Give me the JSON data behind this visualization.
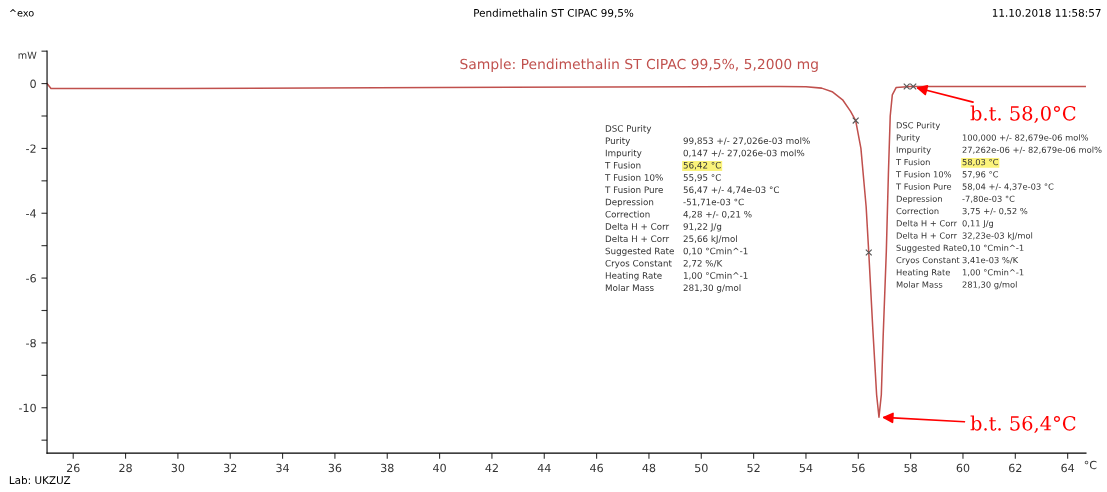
{
  "chart_data": {
    "type": "line",
    "title": "Pendimethalin ST CIPAC 99,5%",
    "subtitle": "Sample: Pendimethalin ST CIPAC 99,5%, 5,2000 mg",
    "xlabel": "°C",
    "ylabel": "mW",
    "xlim": [
      25.0,
      64.7
    ],
    "ylim": [
      -11.4,
      1.0
    ],
    "xticks": [
      26,
      28,
      30,
      32,
      34,
      36,
      38,
      40,
      42,
      44,
      46,
      48,
      50,
      52,
      54,
      56,
      58,
      60,
      62,
      64
    ],
    "yticks": [
      {
        "value": -11,
        "label": null
      },
      -10,
      {
        "value": -9,
        "label": null
      },
      -8,
      {
        "value": -7,
        "label": null
      },
      -6,
      {
        "value": -5,
        "label": null
      },
      -4,
      {
        "value": -3,
        "label": null
      },
      -2,
      {
        "value": -1,
        "label": null
      },
      0,
      {
        "value": 1,
        "label": null
      }
    ],
    "grid": false,
    "legend": false,
    "series": [
      {
        "color": "#c0504d",
        "marker": "none",
        "line_style": "solid",
        "x": [
          25.0,
          25.15,
          30,
          40,
          50,
          53,
          54.0,
          54.6,
          55.0,
          55.4,
          55.7,
          55.9,
          56.1,
          56.3,
          56.4,
          56.55,
          56.7,
          56.79,
          56.88,
          56.95,
          57.07,
          57.15,
          57.22,
          57.3,
          57.45,
          58.0,
          64.7
        ],
        "values": [
          0,
          -0.15,
          -0.15,
          -0.12,
          -0.1,
          -0.09,
          -0.1,
          -0.14,
          -0.25,
          -0.5,
          -0.85,
          -1.14,
          -2.0,
          -3.8,
          -5.21,
          -7.5,
          -9.6,
          -10.29,
          -9.6,
          -7.8,
          -5.2,
          -2.8,
          -1.0,
          -0.35,
          -0.12,
          -0.09,
          -0.09
        ]
      },
      {
        "type": "scatter",
        "color": "#555555",
        "marker": "cross",
        "x": [
          55.9,
          56.4,
          57.85,
          58.1
        ],
        "values": [
          -1.14,
          -5.21,
          -0.09,
          -0.09
        ]
      }
    ],
    "annotations": [
      "^exo",
      "11.10.2018 11:58:57",
      "Lab: UKZUZ",
      "DSC Purity\nPurity\nImpurity\nT Fusion\nT Fusion 10%\nT Fusion Pure\nDepression\nCorrection\nDelta H + Corr\nDelta H + Corr\nSuggested Rate\nCryos Constant\nHeating Rate\nMolar Mass",
      "\n99,853 +/- 27,026e-03 mol%\n0,147 +/- 27,026e-03 mol%\n56,42 °C\n55,95 °C\n56,47 +/- 4,74e-03 °C\n-51,71e-03 °C\n4,28 +/- 0,21 %\n91,22 J/g\n25,66 kJ/mol\n0,10 °Cmin^-1\n2,72 %/K\n1,00 °Cmin^-1\n281,30 g/mol",
      "DSC Purity\nPurity\nImpurity\nT Fusion\nT Fusion 10%\nT Fusion Pure\nDepression\nCorrection\nDelta H + Corr\nDelta H + Corr\nSuggested Rate\nCryos Constant\nHeating Rate\nMolar Mass",
      "\n100,000 +/- 82,679e-06 mol%\n27,262e-06 +/- 82,679e-06 mol%\n58,03 °C\n57,96 °C\n58,04 +/- 4,37e-03 °C\n-7,80e-03 °C\n3,75 +/- 0,52 %\n0,11 J/g\n32,23e-03 kJ/mol\n0,10 °Cmin^-1\n3,41e-03 %/K\n1,00 °Cmin^-1\n281,30 g/mol",
      {
        "text": "b.t. 58,0°C",
        "x": 58.1,
        "y": -0.1
      },
      {
        "text": "b.t. 56,4°C",
        "x": 56.8,
        "y": -10.29
      }
    ]
  }
}
